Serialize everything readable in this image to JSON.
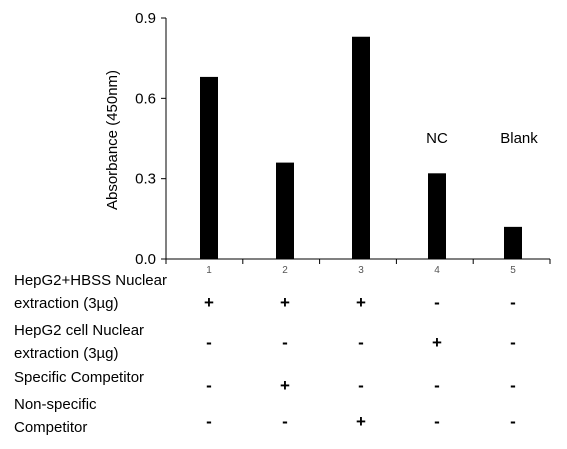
{
  "chart_data": {
    "type": "bar",
    "categories": [
      "1",
      "2",
      "3",
      "4",
      "5"
    ],
    "values": [
      0.68,
      0.36,
      0.83,
      0.32,
      0.12
    ],
    "ylabel": "Absorbance (450nm)",
    "xlabel": "",
    "title": "",
    "ylim": [
      0,
      0.9
    ],
    "yticks": [
      "0.0",
      "0.3",
      "0.6",
      "0.9"
    ],
    "bar_color": "#000000",
    "grid": false,
    "annotations": [
      {
        "category": "4",
        "text": "NC"
      },
      {
        "category": "5",
        "text": "Blank"
      }
    ]
  },
  "conditions": [
    {
      "label_lines": [
        "HepG2+HBSS Nuclear",
        "extraction (3µg)"
      ],
      "signs": [
        "+",
        "+",
        "+",
        "-",
        "-"
      ]
    },
    {
      "label_lines": [
        "HepG2 cell Nuclear",
        "extraction (3µg)"
      ],
      "signs": [
        "-",
        "-",
        "-",
        "+",
        "-"
      ]
    },
    {
      "label_lines": [
        "Specific Competitor"
      ],
      "signs": [
        "-",
        "+",
        "-",
        "-",
        "-"
      ]
    },
    {
      "label_lines": [
        "Non-specific",
        "Competitor"
      ],
      "signs": [
        "-",
        "-",
        "+",
        "-",
        "-"
      ]
    }
  ]
}
